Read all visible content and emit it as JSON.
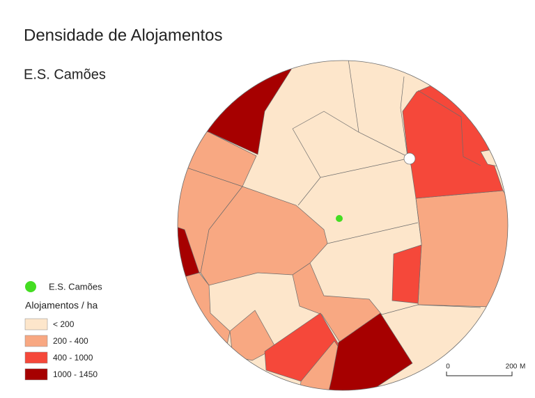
{
  "header": {
    "title": "Densidade de Alojamentos",
    "subtitle": "E.S. Camões"
  },
  "legend": {
    "point_label": "E.S. Camões",
    "point_color": "#44dd22",
    "title": "Alojamentos / ha",
    "classes": [
      {
        "label": "< 200",
        "color": "#fde6cb"
      },
      {
        "label": "200 - 400",
        "color": "#f8a882"
      },
      {
        "label": "400 - 1000",
        "color": "#f5483a"
      },
      {
        "label": "1000 - 1450",
        "color": "#a60000"
      }
    ]
  },
  "scale_bar": {
    "start": "0",
    "end": "200",
    "unit": "M"
  }
}
